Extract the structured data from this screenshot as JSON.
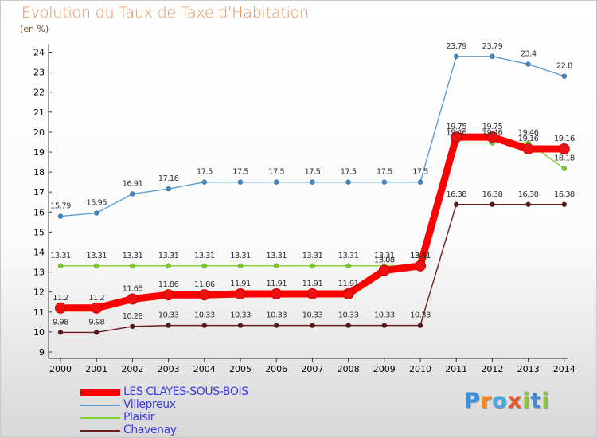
{
  "title": "Evolution du Taux de Taxe d'Habitation",
  "unit_label": "(en %)",
  "logo": {
    "letters": [
      "P",
      "r",
      "o",
      "x",
      "i",
      "t",
      "i"
    ],
    "colors": [
      "#3a8fd6",
      "#f08a1c",
      "#49a8dc",
      "#e8552a",
      "#8dc63f",
      "#3a8fd6",
      "#8dc63f"
    ]
  },
  "chart_data": {
    "type": "line",
    "title": "Evolution du Taux de Taxe d'Habitation",
    "ylabel": "(en %)",
    "xlabel": "",
    "ylim": [
      9,
      24
    ],
    "yticks": [
      "9",
      "10",
      "11",
      "12",
      "13",
      "14",
      "15",
      "16",
      "17",
      "18",
      "19",
      "20",
      "21",
      "22",
      "23",
      "24"
    ],
    "grid": false,
    "legend_position": "bottom-left",
    "x": [
      "2000",
      "2001",
      "2002",
      "2003",
      "2004",
      "2005",
      "2006",
      "2007",
      "2008",
      "2009",
      "2010",
      "2011",
      "2012",
      "2013",
      "2014"
    ],
    "series": [
      {
        "name": "LES CLAYES-SOUS-BOIS",
        "color": "#ff0000",
        "marker": "#ee1111",
        "labelColor": "#333333",
        "values": [
          11.2,
          11.2,
          11.65,
          11.86,
          11.86,
          11.91,
          11.91,
          11.91,
          11.91,
          13.08,
          13.31,
          19.75,
          19.75,
          19.16,
          19.16
        ],
        "labels": [
          "11.2",
          "11.2",
          "11.65",
          "11.86",
          "11.86",
          "11.91",
          "11.91",
          "11.91",
          "11.91",
          "13.08",
          "13.31",
          "19.75",
          "19.75",
          "19.16",
          "19.16"
        ]
      },
      {
        "name": "Villepreux",
        "color": "#5a9fd4",
        "marker": "#3f88c8",
        "labelColor": "#333333",
        "values": [
          15.79,
          15.95,
          16.91,
          17.16,
          17.5,
          17.5,
          17.5,
          17.5,
          17.5,
          17.5,
          17.5,
          23.79,
          23.79,
          23.4,
          22.8
        ],
        "labels": [
          "15.79",
          "15.95",
          "16.91",
          "17.16",
          "17.5",
          "17.5",
          "17.5",
          "17.5",
          "17.5",
          "17.5",
          "17.5",
          "23.79",
          "23.79",
          "23.4",
          "22.8"
        ]
      },
      {
        "name": "Plaisir",
        "color": "#80d030",
        "marker": "#7ecb2e",
        "labelColor": "#333333",
        "values": [
          13.31,
          13.31,
          13.31,
          13.31,
          13.31,
          13.31,
          13.31,
          13.31,
          13.31,
          13.31,
          13.31,
          19.46,
          19.46,
          19.46,
          18.18
        ],
        "labels": [
          "13.31",
          "13.31",
          "13.31",
          "13.31",
          "13.31",
          "13.31",
          "13.31",
          "13.31",
          "13.31",
          "13.31",
          "13.31",
          "19.46",
          "19.46",
          "19.46",
          "18.18"
        ]
      },
      {
        "name": "Chavenay",
        "color": "#6b1d1d",
        "marker": "#5a1414",
        "labelColor": "#333333",
        "values": [
          9.98,
          9.98,
          10.28,
          10.33,
          10.33,
          10.33,
          10.33,
          10.33,
          10.33,
          10.33,
          10.33,
          16.38,
          16.38,
          16.38,
          16.38
        ],
        "labels": [
          "9.98",
          "9.98",
          "10.28",
          "10.33",
          "10.33",
          "10.33",
          "10.33",
          "10.33",
          "10.33",
          "10.33",
          "10.33",
          "16.38",
          "16.38",
          "16.38",
          "16.38"
        ]
      }
    ]
  }
}
